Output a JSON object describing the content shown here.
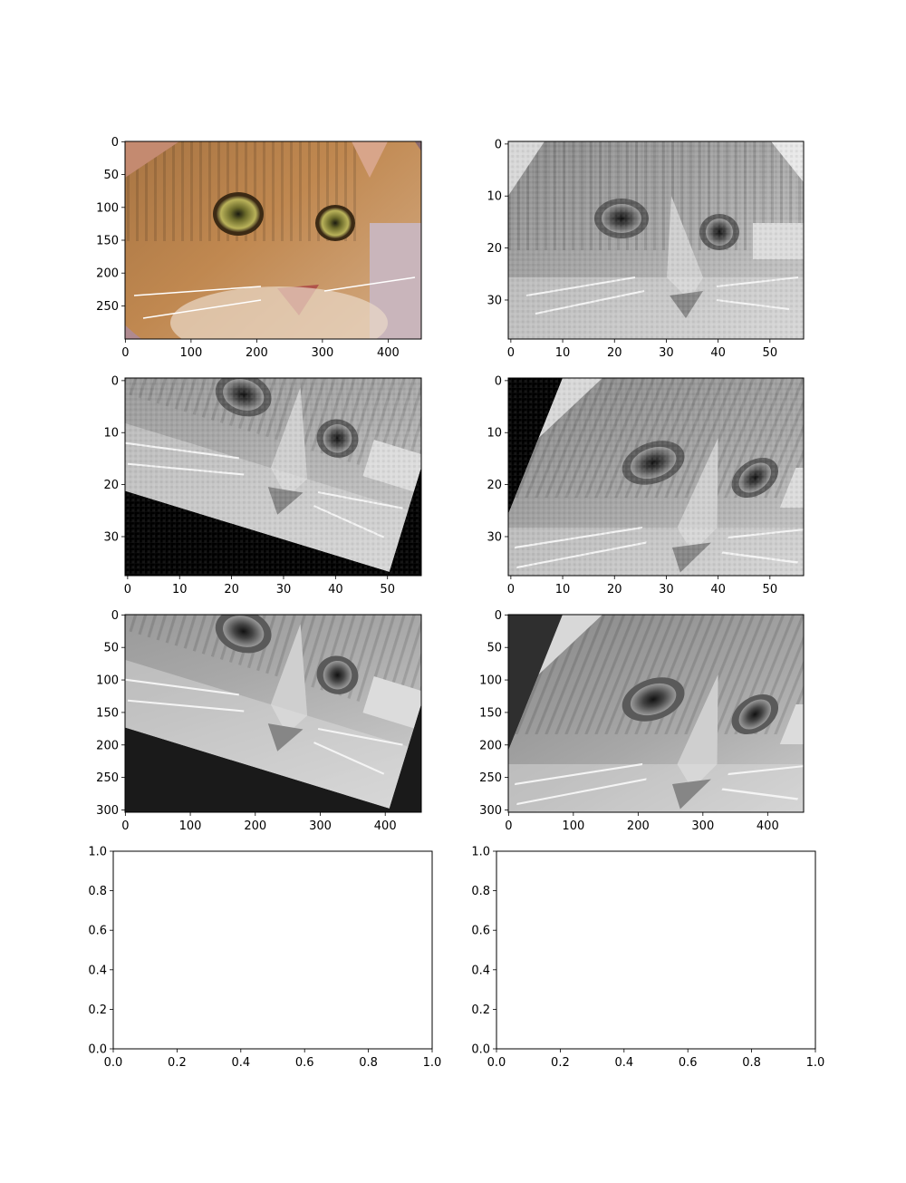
{
  "figure": {
    "background": "#ffffff",
    "layout": "4 rows x 2 columns of matplotlib axes"
  },
  "chart_data": [
    {
      "type": "image",
      "image": "cat photograph, color",
      "colormap": "rgb",
      "x_ticks": [
        "0",
        "100",
        "200",
        "300",
        "400"
      ],
      "x_tick_values": [
        0,
        100,
        200,
        300,
        400
      ],
      "y_ticks": [
        "0",
        "50",
        "100",
        "150",
        "200",
        "250"
      ],
      "y_tick_values": [
        0,
        50,
        100,
        150,
        200,
        250
      ],
      "xlim": [
        -0.5,
        450.5
      ],
      "ylim": [
        300.5,
        -0.5
      ]
    },
    {
      "type": "image",
      "image": "cat photograph, downsampled grayscale",
      "colormap": "gray",
      "x_ticks": [
        "0",
        "10",
        "20",
        "30",
        "40",
        "50"
      ],
      "x_tick_values": [
        0,
        10,
        20,
        30,
        40,
        50
      ],
      "y_ticks": [
        "0",
        "10",
        "20",
        "30"
      ],
      "y_tick_values": [
        0,
        10,
        20,
        30
      ],
      "xlim": [
        -0.5,
        56.5
      ],
      "ylim": [
        37.5,
        -0.5
      ]
    },
    {
      "type": "image",
      "image": "cat photograph, downsampled grayscale, rotated",
      "colormap": "gray",
      "x_ticks": [
        "0",
        "10",
        "20",
        "30",
        "40",
        "50"
      ],
      "x_tick_values": [
        0,
        10,
        20,
        30,
        40,
        50
      ],
      "y_ticks": [
        "0",
        "10",
        "20",
        "30"
      ],
      "y_tick_values": [
        0,
        10,
        20,
        30
      ],
      "xlim": [
        -0.5,
        56.5
      ],
      "ylim": [
        37.5,
        -0.5
      ]
    },
    {
      "type": "image",
      "image": "cat photograph, downsampled grayscale, sheared",
      "colormap": "gray",
      "x_ticks": [
        "0",
        "10",
        "20",
        "30",
        "40",
        "50"
      ],
      "x_tick_values": [
        0,
        10,
        20,
        30,
        40,
        50
      ],
      "y_ticks": [
        "0",
        "10",
        "20",
        "30"
      ],
      "y_tick_values": [
        0,
        10,
        20,
        30
      ],
      "xlim": [
        -0.5,
        56.5
      ],
      "ylim": [
        37.5,
        -0.5
      ]
    },
    {
      "type": "image",
      "image": "cat photograph, grayscale, rotated, upsampled",
      "colormap": "gray",
      "x_ticks": [
        "0",
        "100",
        "200",
        "300",
        "400"
      ],
      "x_tick_values": [
        0,
        100,
        200,
        300,
        400
      ],
      "y_ticks": [
        "0",
        "50",
        "100",
        "150",
        "200",
        "250",
        "300"
      ],
      "y_tick_values": [
        0,
        50,
        100,
        150,
        200,
        250,
        300
      ],
      "xlim": [
        -0.5,
        455.5
      ],
      "ylim": [
        303.5,
        -0.5
      ]
    },
    {
      "type": "image",
      "image": "cat photograph, grayscale, sheared, upsampled",
      "colormap": "gray",
      "x_ticks": [
        "0",
        "100",
        "200",
        "300",
        "400"
      ],
      "x_tick_values": [
        0,
        100,
        200,
        300,
        400
      ],
      "y_ticks": [
        "0",
        "50",
        "100",
        "150",
        "200",
        "250",
        "300"
      ],
      "y_tick_values": [
        0,
        50,
        100,
        150,
        200,
        250,
        300
      ],
      "xlim": [
        -0.5,
        455.5
      ],
      "ylim": [
        303.5,
        -0.5
      ]
    },
    {
      "type": "empty",
      "x_ticks": [
        "0.0",
        "0.2",
        "0.4",
        "0.6",
        "0.8",
        "1.0"
      ],
      "x_tick_values": [
        0,
        0.2,
        0.4,
        0.6,
        0.8,
        1.0
      ],
      "y_ticks": [
        "0.0",
        "0.2",
        "0.4",
        "0.6",
        "0.8",
        "1.0"
      ],
      "y_tick_values": [
        0,
        0.2,
        0.4,
        0.6,
        0.8,
        1.0
      ],
      "xlim": [
        0,
        1
      ],
      "ylim": [
        0,
        1
      ]
    },
    {
      "type": "empty",
      "x_ticks": [
        "0.0",
        "0.2",
        "0.4",
        "0.6",
        "0.8",
        "1.0"
      ],
      "x_tick_values": [
        0,
        0.2,
        0.4,
        0.6,
        0.8,
        1.0
      ],
      "y_ticks": [
        "0.0",
        "0.2",
        "0.4",
        "0.6",
        "0.8",
        "1.0"
      ],
      "y_tick_values": [
        0,
        0.2,
        0.4,
        0.6,
        0.8,
        1.0
      ],
      "xlim": [
        0,
        1
      ],
      "ylim": [
        0,
        1
      ]
    }
  ]
}
